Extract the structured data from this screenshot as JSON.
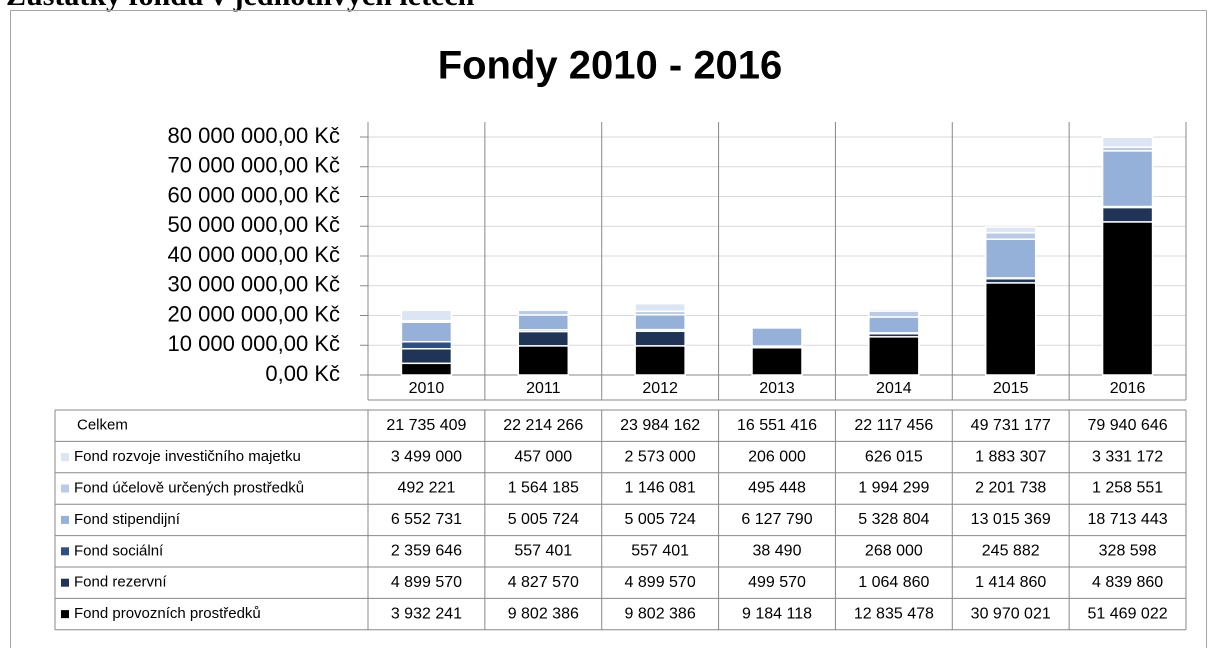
{
  "page_heading": "Zůstatky fondů v jednotlivých letech",
  "chart_data": {
    "type": "stacked_bar",
    "title": "Fondy 2010 - 2016",
    "categories": [
      "2010",
      "2011",
      "2012",
      "2013",
      "2014",
      "2015",
      "2016"
    ],
    "series": [
      {
        "name": "Fond provozních prostředků",
        "color": "#000000",
        "values": [
          3932241,
          9802386,
          9802386,
          9184118,
          12835478,
          30970021,
          51469022
        ],
        "value_labels": [
          "3 932 241",
          "9 802 386",
          "9 802 386",
          "9 184 118",
          "12 835 478",
          "30 970 021",
          "51 469 022"
        ]
      },
      {
        "name": "Fond rezervní",
        "color": "#1f3456",
        "values": [
          4899570,
          4827570,
          4899570,
          499570,
          1064860,
          1414860,
          4839860
        ],
        "value_labels": [
          "4 899 570",
          "4 827 570",
          "4 899 570",
          "499 570",
          "1 064 860",
          "1 414 860",
          "4 839 860"
        ]
      },
      {
        "name": "Fond sociální",
        "color": "#2e4f85",
        "values": [
          2359646,
          557401,
          557401,
          38490,
          268000,
          245882,
          328598
        ],
        "value_labels": [
          "2 359 646",
          "557 401",
          "557 401",
          "38 490",
          "268 000",
          "245 882",
          "328 598"
        ]
      },
      {
        "name": "Fond stipendijní",
        "color": "#95b1da",
        "values": [
          6552731,
          5005724,
          5005724,
          6127790,
          5328804,
          13015369,
          18713443
        ],
        "value_labels": [
          "6 552 731",
          "5 005 724",
          "5 005 724",
          "6 127 790",
          "5 328 804",
          "13 015 369",
          "18 713 443"
        ]
      },
      {
        "name": "Fond účelově určených prostředků",
        "color": "#b9cbe6",
        "values": [
          492221,
          1564185,
          1146081,
          495448,
          1994299,
          2201738,
          1258551
        ],
        "value_labels": [
          "492 221",
          "1 564 185",
          "1 146 081",
          "495 448",
          "1 994 299",
          "2 201 738",
          "1 258 551"
        ]
      },
      {
        "name": "Fond rozvoje investičního majetku",
        "color": "#dce5f3",
        "values": [
          3499000,
          457000,
          2573000,
          206000,
          626015,
          1883307,
          3331172
        ],
        "value_labels": [
          "3 499 000",
          "457 000",
          "2 573 000",
          "206 000",
          "626 015",
          "1 883 307",
          "3 331 172"
        ]
      }
    ],
    "total": {
      "name": "Celkem",
      "values": [
        21735409,
        22214266,
        23984162,
        16551416,
        22117456,
        49731177,
        79940646
      ],
      "value_labels": [
        "21 735 409",
        "22 214 266",
        "23 984 162",
        "16 551 416",
        "22 117 456",
        "49 731 177",
        "79 940 646"
      ]
    },
    "ylim": [
      0,
      80000000
    ],
    "yticks": [
      {
        "value": 0,
        "label": "0,00 Kč"
      },
      {
        "value": 10000000,
        "label": "10 000 000,00 Kč"
      },
      {
        "value": 20000000,
        "label": "20 000 000,00 Kč"
      },
      {
        "value": 30000000,
        "label": "30 000 000,00 Kč"
      },
      {
        "value": 40000000,
        "label": "40 000 000,00 Kč"
      },
      {
        "value": 50000000,
        "label": "50 000 000,00 Kč"
      },
      {
        "value": 60000000,
        "label": "60 000 000,00 Kč"
      },
      {
        "value": 70000000,
        "label": "70 000 000,00 Kč"
      },
      {
        "value": 80000000,
        "label": "80 000 000,00 Kč"
      }
    ],
    "grid": true
  }
}
